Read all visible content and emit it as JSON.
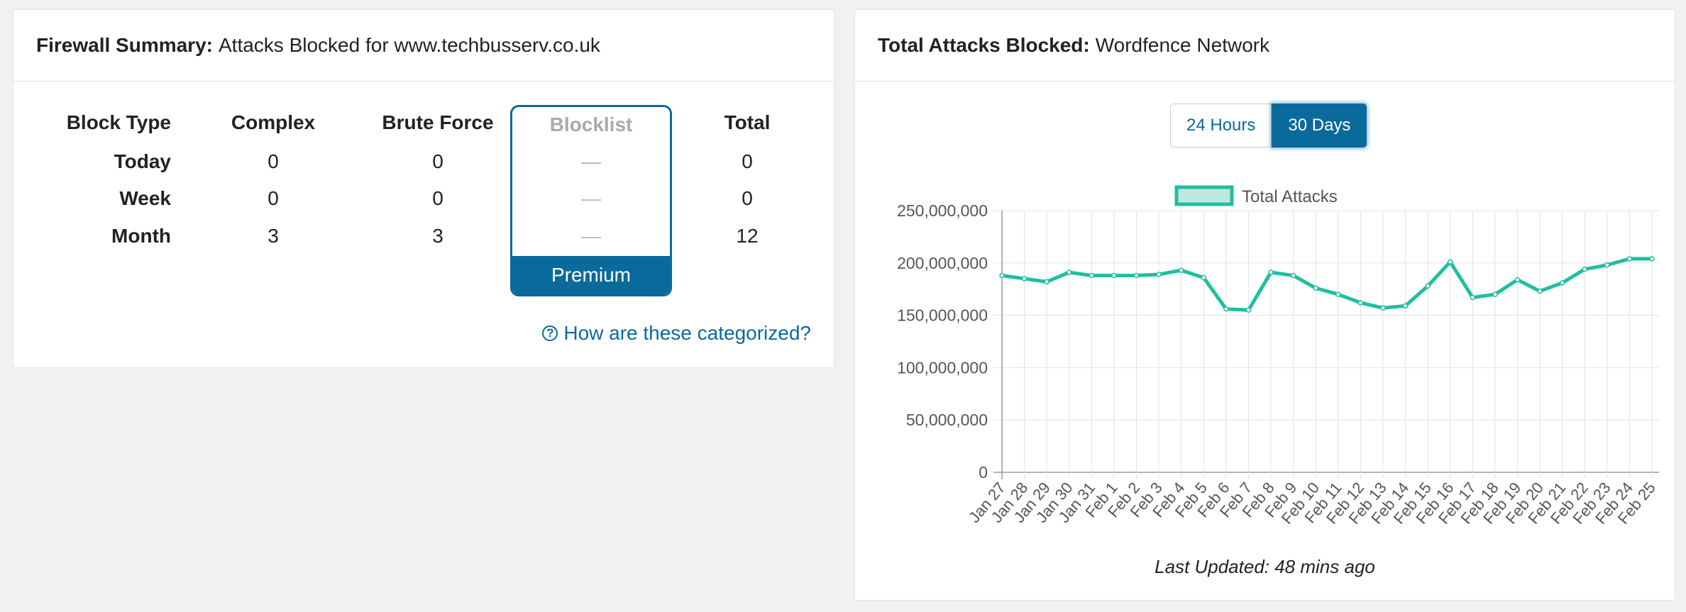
{
  "firewall_summary": {
    "title_bold": "Firewall Summary:",
    "title_rest": "Attacks Blocked for www.techbusserv.co.uk",
    "headers": {
      "block_type": "Block Type",
      "complex": "Complex",
      "brute_force": "Brute Force",
      "blocklist": "Blocklist",
      "total": "Total"
    },
    "rows": [
      {
        "label": "Today",
        "complex": "0",
        "brute_force": "0",
        "blocklist": "—",
        "total": "0"
      },
      {
        "label": "Week",
        "complex": "0",
        "brute_force": "0",
        "blocklist": "—",
        "total": "0"
      },
      {
        "label": "Month",
        "complex": "3",
        "brute_force": "3",
        "blocklist": "—",
        "total": "12"
      }
    ],
    "premium_label": "Premium",
    "help_icon": "question-circle-icon",
    "help_link": "How are these categorized?"
  },
  "total_attacks": {
    "title_bold": "Total Attacks Blocked:",
    "title_rest": "Wordfence Network",
    "range_buttons": {
      "h24": "24 Hours",
      "d30": "30 Days"
    },
    "selected_range": "30 Days",
    "last_updated": "Last Updated: 48 mins ago"
  },
  "colors": {
    "accent": "#0a6a9c",
    "series": "#1fbfa0"
  },
  "chart_data": {
    "type": "line",
    "legend": [
      "Total Attacks"
    ],
    "legend_position": "top",
    "grid": true,
    "ylim": [
      0,
      250000000
    ],
    "yticks": [
      "0",
      "50,000,000",
      "100,000,000",
      "150,000,000",
      "200,000,000",
      "250,000,000"
    ],
    "categories": [
      "Jan 27",
      "Jan 28",
      "Jan 29",
      "Jan 30",
      "Jan 31",
      "Feb 1",
      "Feb 2",
      "Feb 3",
      "Feb 4",
      "Feb 5",
      "Feb 6",
      "Feb 7",
      "Feb 8",
      "Feb 9",
      "Feb 10",
      "Feb 11",
      "Feb 12",
      "Feb 13",
      "Feb 14",
      "Feb 15",
      "Feb 16",
      "Feb 17",
      "Feb 18",
      "Feb 19",
      "Feb 20",
      "Feb 21",
      "Feb 22",
      "Feb 23",
      "Feb 24",
      "Feb 25"
    ],
    "series": [
      {
        "name": "Total Attacks",
        "values": [
          188000000,
          185000000,
          182000000,
          191000000,
          188000000,
          188000000,
          188000000,
          189000000,
          193000000,
          186000000,
          156000000,
          155000000,
          191000000,
          188000000,
          176000000,
          170000000,
          162000000,
          157000000,
          159000000,
          178000000,
          201000000,
          167000000,
          170000000,
          184000000,
          173000000,
          181000000,
          194000000,
          198000000,
          204000000,
          204000000
        ]
      }
    ]
  }
}
